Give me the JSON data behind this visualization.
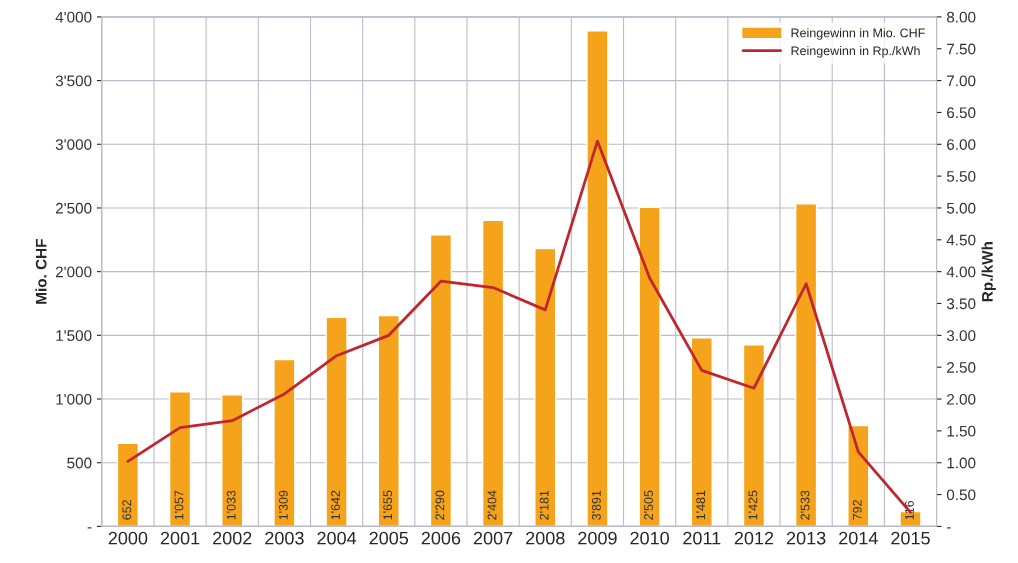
{
  "chart_data": {
    "type": "bar",
    "categories": [
      "2000",
      "2001",
      "2002",
      "2003",
      "2004",
      "2005",
      "2006",
      "2007",
      "2008",
      "2009",
      "2010",
      "2011",
      "2012",
      "2013",
      "2014",
      "2015"
    ],
    "ylabel": "Mio. CHF",
    "y2label": "Rp./kWh",
    "ylim": [
      0,
      4000
    ],
    "yticks": [
      {
        "value": 0,
        "label": "-"
      },
      {
        "value": 500,
        "label": "500"
      },
      {
        "value": 1000,
        "label": "1'000"
      },
      {
        "value": 1500,
        "label": "1'500"
      },
      {
        "value": 2000,
        "label": "2'000"
      },
      {
        "value": 2500,
        "label": "2'500"
      },
      {
        "value": 3000,
        "label": "3'000"
      },
      {
        "value": 3500,
        "label": "3'500"
      },
      {
        "value": 4000,
        "label": "4'000"
      }
    ],
    "y2lim": [
      0,
      8
    ],
    "y2ticks": [
      {
        "value": 0,
        "label": "-"
      },
      {
        "value": 0.5,
        "label": "0.50"
      },
      {
        "value": 1,
        "label": "1.00"
      },
      {
        "value": 1.5,
        "label": "1.50"
      },
      {
        "value": 2,
        "label": "2.00"
      },
      {
        "value": 2.5,
        "label": "2.50"
      },
      {
        "value": 3,
        "label": "3.00"
      },
      {
        "value": 3.5,
        "label": "3.50"
      },
      {
        "value": 4,
        "label": "4.00"
      },
      {
        "value": 4.5,
        "label": "4.50"
      },
      {
        "value": 5,
        "label": "5.00"
      },
      {
        "value": 5.5,
        "label": "5.50"
      },
      {
        "value": 6,
        "label": "6.00"
      },
      {
        "value": 6.5,
        "label": "6.50"
      },
      {
        "value": 7,
        "label": "7.00"
      },
      {
        "value": 7.5,
        "label": "7.50"
      },
      {
        "value": 8,
        "label": "8.00"
      }
    ],
    "series": [
      {
        "name": "Reingewinn in Mio. CHF",
        "color": "#f5a31a",
        "values": [
          652,
          1057,
          1033,
          1309,
          1642,
          1655,
          2290,
          2404,
          2181,
          3891,
          2505,
          1481,
          1425,
          2533,
          792,
          116
        ],
        "value_labels": [
          "652",
          "1'057",
          "1'033",
          "1'309",
          "1'642",
          "1'655",
          "2'290",
          "2'404",
          "2'181",
          "3'891",
          "2'505",
          "1'481",
          "1'425",
          "2'533",
          "792",
          "116"
        ]
      },
      {
        "name": "Reingewinn in Rp./kWh",
        "type": "line",
        "axis": "y2",
        "color": "#c0262d",
        "values": [
          1.02,
          1.55,
          1.66,
          2.08,
          2.68,
          3.0,
          3.85,
          3.75,
          3.4,
          6.05,
          3.9,
          2.45,
          2.17,
          3.81,
          1.17,
          0.22
        ]
      }
    ],
    "grid": true,
    "legend": "top right",
    "marker": "none"
  }
}
